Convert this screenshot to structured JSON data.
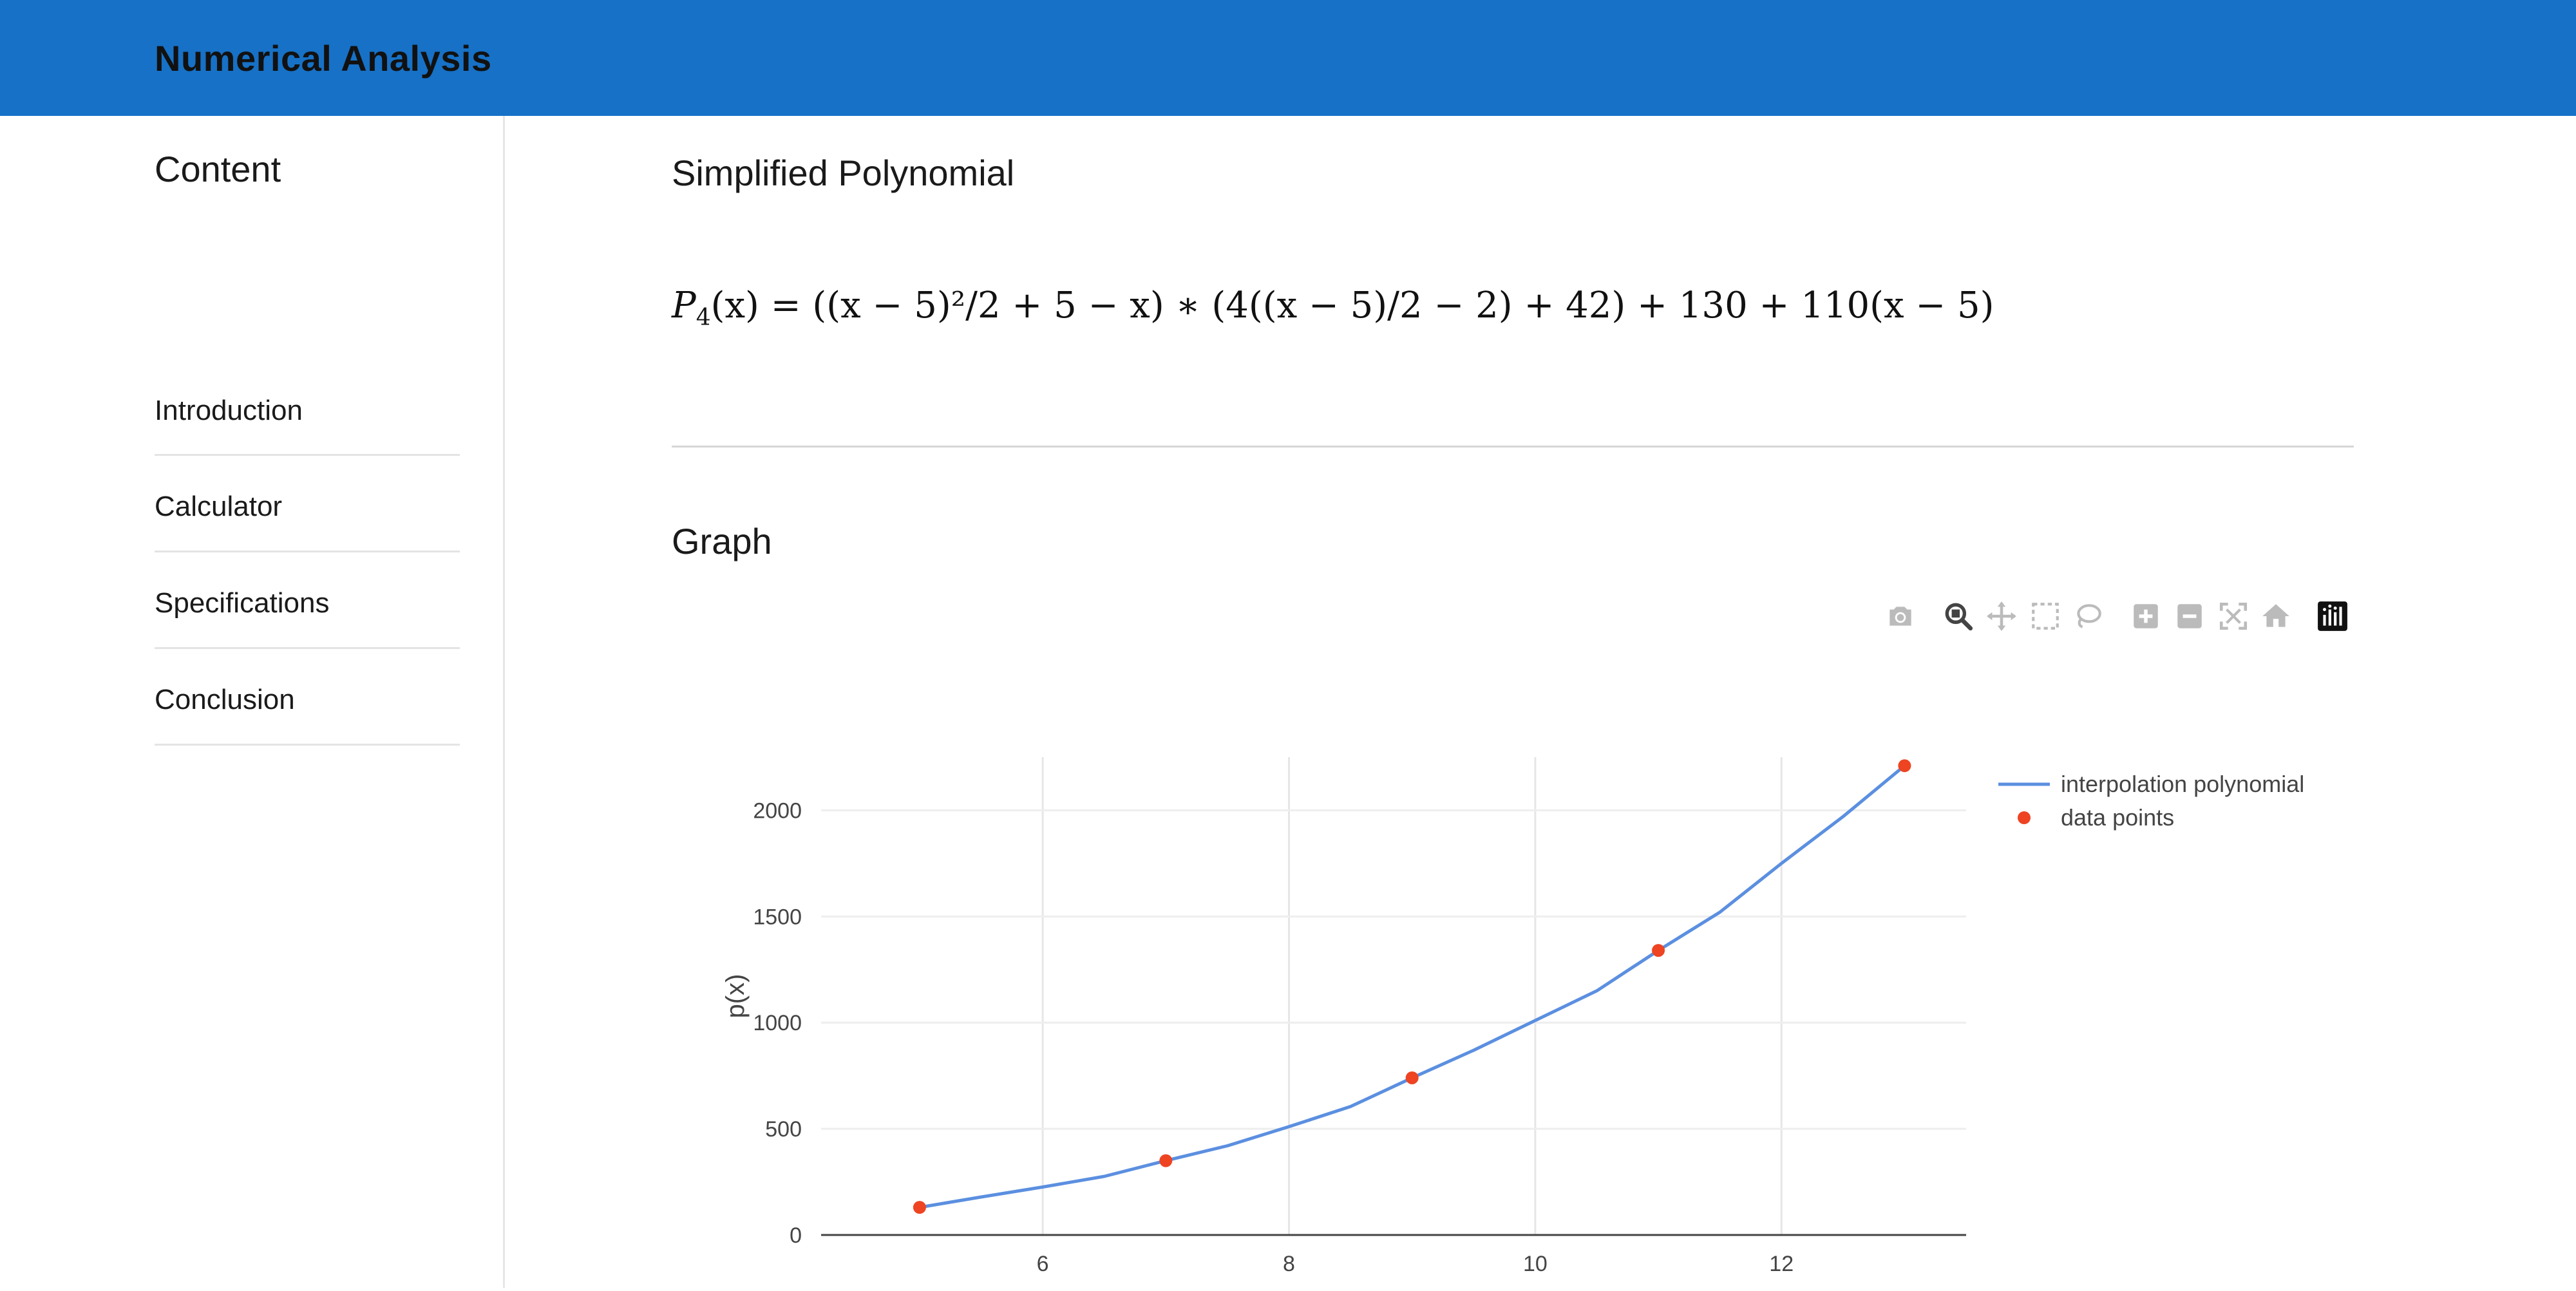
{
  "header": {
    "title": "Numerical Analysis"
  },
  "sidebar": {
    "title": "Content",
    "items": [
      {
        "label": "Introduction"
      },
      {
        "label": "Calculator"
      },
      {
        "label": "Specifications"
      },
      {
        "label": "Conclusion"
      }
    ]
  },
  "main": {
    "section1_title": "Simplified Polynomial",
    "formula": {
      "lhs_symbol": "P",
      "lhs_subscript": "4",
      "lhs_arg": "(x)",
      "rhs": "= ((x − 5)²/2 + 5 − x) ∗ (4((x − 5)/2 − 2) + 42) + 130 + 110(x − 5)"
    },
    "section2_title": "Graph"
  },
  "toolbar": {
    "icons": [
      "camera-icon",
      "zoom-icon",
      "pan-icon",
      "box-select-icon",
      "lasso-select-icon",
      "zoom-in-icon",
      "zoom-out-icon",
      "autoscale-icon",
      "reset-axes-icon",
      "plotly-logo-icon"
    ],
    "active_color": "#444444",
    "inactive_color": "#bbbbbb"
  },
  "chart_data": {
    "type": "line",
    "xlabel": "",
    "ylabel": "p(x)",
    "xlim": [
      4.2,
      13.5
    ],
    "ylim": [
      0,
      2250
    ],
    "xticks": [
      6,
      8,
      10,
      12
    ],
    "yticks": [
      0,
      500,
      1000,
      1500,
      2000
    ],
    "grid": true,
    "legend_position": "top-right",
    "series": [
      {
        "name": "interpolation polynomial",
        "mode": "line",
        "color": "#5b8fe0",
        "x": [
          5,
          5.5,
          6,
          6.5,
          7,
          7.5,
          8,
          8.5,
          9,
          9.5,
          10,
          10.5,
          11,
          11.5,
          12,
          12.5,
          13
        ],
        "y": [
          130,
          179,
          226,
          276,
          350,
          420,
          510,
          605,
          740,
          870,
          1010,
          1150,
          1340,
          1520,
          1750,
          1970,
          2210
        ]
      },
      {
        "name": "data points",
        "mode": "markers",
        "color": "#ee4422",
        "x": [
          5,
          7,
          9,
          11,
          13
        ],
        "y": [
          130,
          350,
          740,
          1340,
          2210
        ]
      }
    ]
  }
}
